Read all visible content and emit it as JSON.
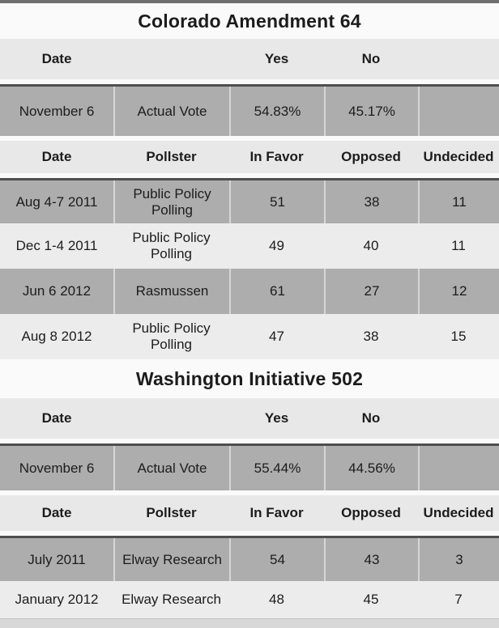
{
  "colors": {
    "page_bg": "#fafafa",
    "header_row_bg": "#e8e8e8",
    "dark_row_bg": "#adadad",
    "light_row_bg": "#ececec",
    "row_top_border": "#4e4e4e",
    "cell_separator": "#d6d6d6",
    "top_strip": "#6f6f6f",
    "bottom_strip": "#d8d8d8",
    "text": "#1c1c1c"
  },
  "chart_data": [
    {
      "type": "table",
      "title": "Colorado Amendment 64",
      "vote_columns": [
        "Date",
        "",
        "Yes",
        "No",
        ""
      ],
      "vote_row": [
        "November 6",
        "Actual Vote",
        "54.83%",
        "45.17%",
        ""
      ],
      "poll_columns": [
        "Date",
        "Pollster",
        "In Favor",
        "Opposed",
        "Undecided"
      ],
      "rows": [
        [
          "Aug 4-7 2011",
          "Public Policy Polling",
          "51",
          "38",
          "11"
        ],
        [
          "Dec 1-4 2011",
          "Public Policy Polling",
          "49",
          "40",
          "11"
        ],
        [
          "Jun 6 2012",
          "Rasmussen",
          "61",
          "27",
          "12"
        ],
        [
          "Aug 8 2012",
          "Public Policy Polling",
          "47",
          "38",
          "15"
        ]
      ]
    },
    {
      "type": "table",
      "title": "Washington Initiative 502",
      "vote_columns": [
        "Date",
        "",
        "Yes",
        "No",
        ""
      ],
      "vote_row": [
        "November 6",
        "Actual Vote",
        "55.44%",
        "44.56%",
        ""
      ],
      "poll_columns": [
        "Date",
        "Pollster",
        "In Favor",
        "Opposed",
        "Undecided"
      ],
      "rows": [
        [
          "July 2011",
          "Elway Research",
          "54",
          "43",
          "3"
        ],
        [
          "January 2012",
          "Elway Research",
          "48",
          "45",
          "7"
        ]
      ]
    }
  ]
}
